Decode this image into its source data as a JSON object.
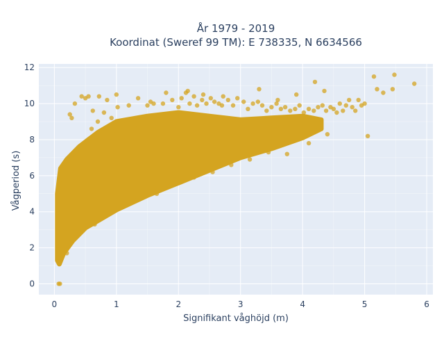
{
  "chart_data": {
    "type": "scatter",
    "title_lines": [
      "År 1979 - 2019",
      "Koordinat (Sweref 99 TM): E 738335, N 6634566"
    ],
    "xlabel": "Signifikant våghöjd (m)",
    "ylabel": "Vågperiod (s)",
    "xlim": [
      -0.25,
      6.1
    ],
    "ylim": [
      -0.6,
      12.2
    ],
    "x_ticks": [
      0,
      1,
      2,
      3,
      4,
      5,
      6
    ],
    "y_ticks": [
      0,
      2,
      4,
      6,
      8,
      10,
      12
    ],
    "grid": true,
    "marker_color": "#d4a420",
    "marker_opacity": 0.75,
    "background_color": "#e5ecf6",
    "grid_color": "#ffffff",
    "cloud_envelope": {
      "upper": [
        [
          0.05,
          5.0
        ],
        [
          0.1,
          6.4
        ],
        [
          0.2,
          6.9
        ],
        [
          0.4,
          7.6
        ],
        [
          0.7,
          8.4
        ],
        [
          1.0,
          9.0
        ],
        [
          1.5,
          9.3
        ],
        [
          2.0,
          9.5
        ],
        [
          2.5,
          9.3
        ],
        [
          3.0,
          9.1
        ],
        [
          3.5,
          9.2
        ],
        [
          4.0,
          9.3
        ],
        [
          4.3,
          9.1
        ]
      ],
      "lower": [
        [
          4.3,
          8.6
        ],
        [
          4.0,
          8.1
        ],
        [
          3.5,
          7.5
        ],
        [
          3.0,
          7.0
        ],
        [
          2.5,
          6.3
        ],
        [
          2.0,
          5.6
        ],
        [
          1.5,
          4.9
        ],
        [
          1.0,
          4.1
        ],
        [
          0.7,
          3.5
        ],
        [
          0.5,
          3.1
        ],
        [
          0.3,
          2.4
        ],
        [
          0.15,
          1.7
        ],
        [
          0.08,
          1.1
        ],
        [
          0.05,
          1.3
        ]
      ]
    },
    "outliers": {
      "x": [
        0.07,
        0.09,
        0.25,
        0.28,
        0.33,
        0.44,
        0.5,
        0.55,
        0.62,
        0.7,
        0.72,
        0.8,
        0.85,
        0.92,
        1.0,
        1.02,
        1.2,
        1.35,
        1.5,
        1.55,
        1.75,
        1.8,
        1.9,
        2.0,
        2.05,
        2.12,
        2.18,
        2.25,
        2.3,
        2.38,
        2.45,
        2.52,
        2.58,
        2.65,
        2.72,
        2.8,
        2.88,
        2.95,
        3.05,
        3.12,
        3.2,
        3.28,
        3.35,
        3.42,
        3.5,
        3.58,
        3.65,
        3.72,
        3.8,
        3.88,
        3.95,
        4.02,
        4.1,
        4.18,
        4.25,
        4.32,
        4.38,
        4.45,
        4.5,
        4.55,
        4.6,
        4.65,
        4.7,
        4.75,
        4.8,
        4.85,
        4.9,
        4.95,
        5.0,
        5.05,
        5.15,
        5.2,
        5.3,
        5.45,
        5.48,
        5.8,
        4.35,
        4.2,
        3.9,
        3.6,
        3.3,
        2.7,
        2.4,
        2.15,
        1.6,
        0.3,
        0.45,
        0.6,
        0.75,
        0.95,
        1.1,
        1.3,
        4.4,
        4.1,
        3.75,
        3.45,
        3.15,
        2.85,
        2.55,
        2.25,
        1.95,
        1.65,
        0.65,
        0.4,
        0.2
      ],
      "y": [
        0.0,
        0.0,
        9.4,
        9.2,
        10.0,
        10.4,
        10.3,
        10.4,
        9.6,
        9.0,
        10.4,
        9.5,
        10.2,
        9.2,
        10.5,
        9.8,
        9.9,
        10.3,
        9.9,
        10.1,
        10.0,
        10.6,
        10.2,
        9.8,
        10.3,
        10.6,
        10.0,
        10.4,
        9.9,
        10.2,
        10.0,
        10.3,
        10.1,
        10.0,
        10.4,
        10.2,
        9.9,
        10.3,
        10.1,
        9.7,
        10.0,
        10.1,
        9.9,
        9.6,
        9.8,
        10.0,
        9.7,
        9.8,
        9.6,
        9.7,
        9.9,
        9.5,
        9.7,
        9.6,
        9.8,
        9.9,
        9.6,
        9.8,
        9.7,
        9.5,
        10.0,
        9.6,
        9.9,
        10.2,
        9.8,
        9.6,
        10.2,
        9.9,
        10.0,
        8.2,
        11.5,
        10.8,
        10.6,
        10.8,
        11.6,
        11.1,
        10.7,
        11.2,
        10.5,
        10.2,
        10.8,
        9.9,
        10.5,
        10.7,
        10.0,
        6.4,
        7.6,
        8.6,
        7.9,
        8.5,
        8.0,
        8.8,
        8.3,
        7.8,
        7.2,
        7.3,
        6.9,
        6.6,
        6.2,
        5.9,
        5.6,
        5.0,
        3.3,
        2.8,
        1.7
      ]
    }
  }
}
